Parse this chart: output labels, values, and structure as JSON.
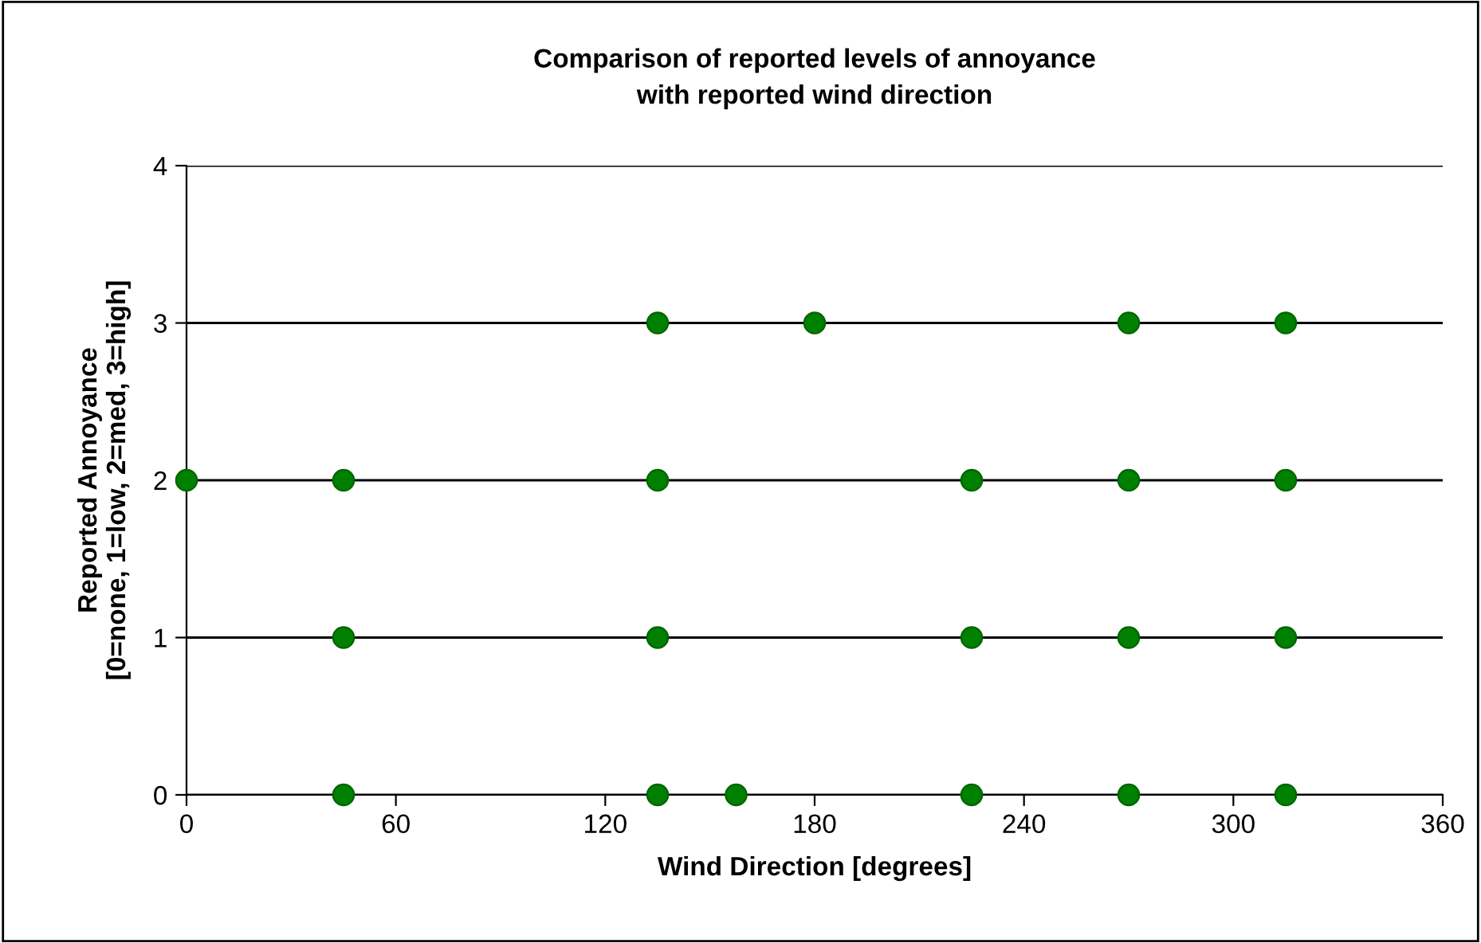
{
  "chart_data": {
    "type": "scatter",
    "title": "Comparison of reported levels of annoyance\nwith reported wind direction",
    "xlabel": "Wind Direction [degrees]",
    "ylabel": "Reported Annoyance\n[0=none, 1=low, 2=med, 3=high]",
    "series": [
      {
        "color": "#008000",
        "x": [
          135,
          180,
          270,
          315,
          0,
          45,
          135,
          225,
          270,
          315,
          45,
          135,
          225,
          270,
          315,
          45,
          135,
          157.5,
          225,
          270,
          315
        ],
        "values": [
          3,
          3,
          3,
          3,
          2,
          2,
          2,
          2,
          2,
          2,
          1,
          1,
          1,
          1,
          1,
          0,
          0,
          0,
          0,
          0,
          0
        ]
      }
    ],
    "xlim": [
      0,
      360
    ],
    "xticks": [
      0,
      60,
      120,
      180,
      240,
      300,
      360
    ],
    "ylim": [
      0,
      4
    ],
    "yticks": [
      0,
      1,
      2,
      3,
      4
    ],
    "grid": "y",
    "marker": "circle",
    "legend": false
  }
}
